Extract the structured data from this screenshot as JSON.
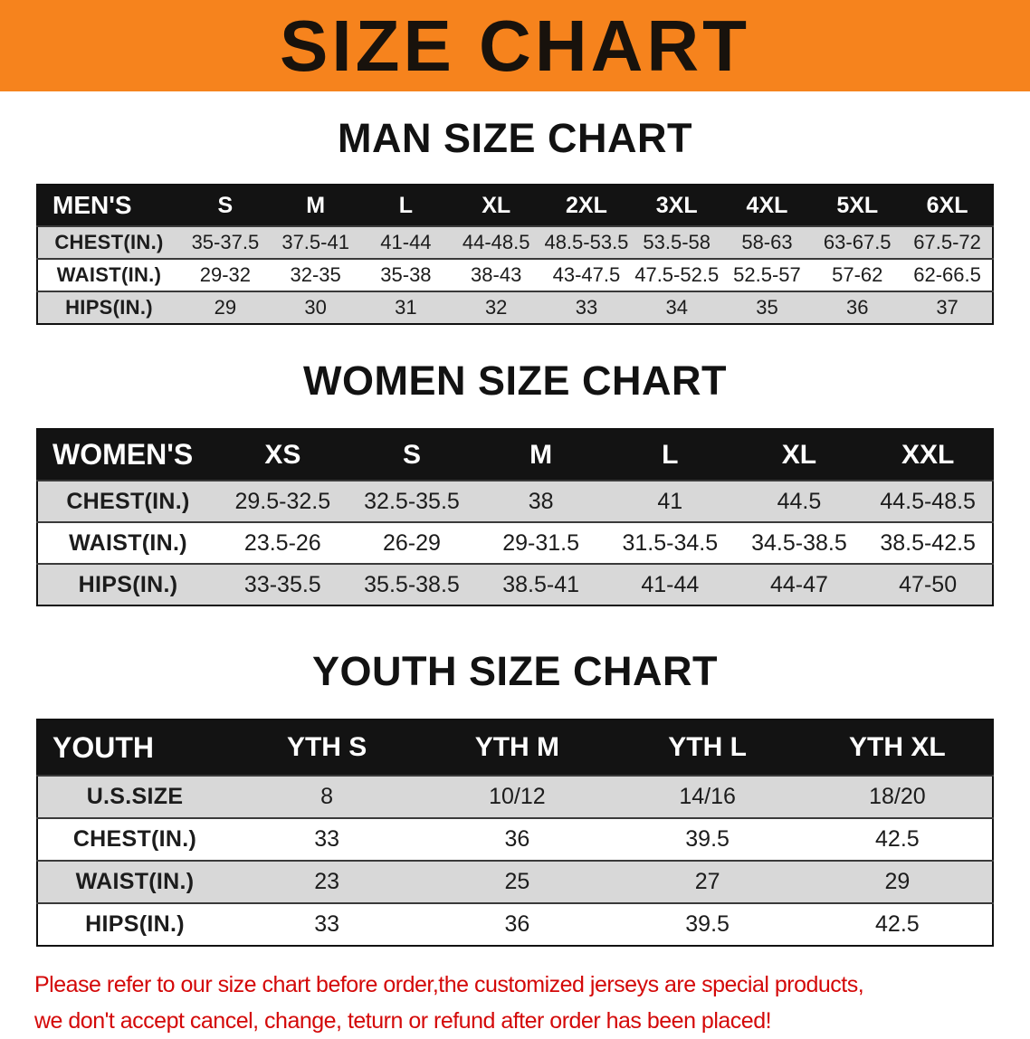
{
  "banner": {
    "title": "SIZE CHART"
  },
  "colors": {
    "banner_bg": "#f6831d",
    "banner_text": "#18120c",
    "table_header_bg": "#131313",
    "table_header_text": "#ffffff",
    "row_stripe": "#d8d8d8",
    "row_plain": "#ffffff",
    "footer_text": "#d40808"
  },
  "sections": [
    {
      "heading": "MAN SIZE CHART",
      "table": {
        "title": "MEN'S",
        "header": [
          "MEN'S",
          "S",
          "M",
          "L",
          "XL",
          "2XL",
          "3XL",
          "4XL",
          "5XL",
          "6XL"
        ],
        "rows": [
          [
            "CHEST(IN.)",
            "35-37.5",
            "37.5-41",
            "41-44",
            "44-48.5",
            "48.5-53.5",
            "53.5-58",
            "58-63",
            "63-67.5",
            "67.5-72"
          ],
          [
            "WAIST(IN.)",
            "29-32",
            "32-35",
            "35-38",
            "38-43",
            "43-47.5",
            "47.5-52.5",
            "52.5-57",
            "57-62",
            "62-66.5"
          ],
          [
            "HIPS(IN.)",
            "29",
            "30",
            "31",
            "32",
            "33",
            "34",
            "35",
            "36",
            "37"
          ]
        ]
      }
    },
    {
      "heading": "WOMEN SIZE CHART",
      "table": {
        "title": "WOMEN'S",
        "header": [
          "WOMEN'S",
          "XS",
          "S",
          "M",
          "L",
          "XL",
          "XXL"
        ],
        "rows": [
          [
            "CHEST(IN.)",
            "29.5-32.5",
            "32.5-35.5",
            "38",
            "41",
            "44.5",
            "44.5-48.5"
          ],
          [
            "WAIST(IN.)",
            "23.5-26",
            "26-29",
            "29-31.5",
            "31.5-34.5",
            "34.5-38.5",
            "38.5-42.5"
          ],
          [
            "HIPS(IN.)",
            "33-35.5",
            "35.5-38.5",
            "38.5-41",
            "41-44",
            "44-47",
            "47-50"
          ]
        ]
      }
    },
    {
      "heading": "YOUTH SIZE CHART",
      "table": {
        "title": "YOUTH",
        "header": [
          "YOUTH",
          "YTH S",
          "YTH M",
          "YTH L",
          "YTH XL"
        ],
        "rows": [
          [
            "U.S.SIZE",
            "8",
            "10/12",
            "14/16",
            "18/20"
          ],
          [
            "CHEST(IN.)",
            "33",
            "36",
            "39.5",
            "42.5"
          ],
          [
            "WAIST(IN.)",
            "23",
            "25",
            "27",
            "29"
          ],
          [
            "HIPS(IN.)",
            "33",
            "36",
            "39.5",
            "42.5"
          ]
        ]
      }
    }
  ],
  "footer": {
    "line1": "Please refer to our size chart before order,the customized jerseys are special products,",
    "line2": "we don't accept cancel, change, teturn or refund after order has been placed!"
  }
}
